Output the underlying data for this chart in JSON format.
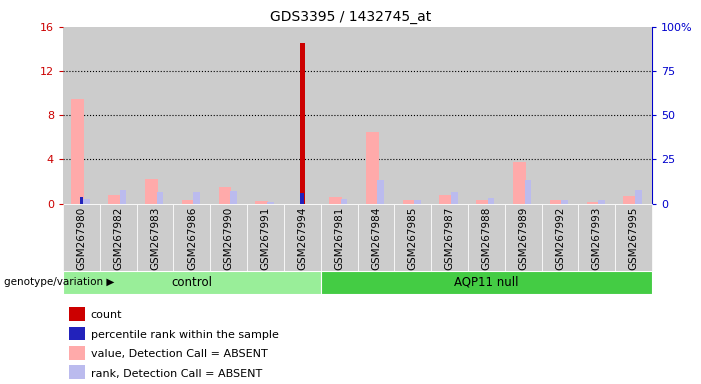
{
  "title": "GDS3395 / 1432745_at",
  "samples": [
    "GSM267980",
    "GSM267982",
    "GSM267983",
    "GSM267986",
    "GSM267990",
    "GSM267991",
    "GSM267994",
    "GSM267981",
    "GSM267984",
    "GSM267985",
    "GSM267987",
    "GSM267988",
    "GSM267989",
    "GSM267992",
    "GSM267993",
    "GSM267995"
  ],
  "count_values": [
    0,
    0,
    0,
    0,
    0,
    0,
    14.5,
    0,
    0,
    0,
    0,
    0,
    0,
    0,
    0,
    0
  ],
  "percentile_values": [
    3.8,
    0,
    0,
    0,
    0,
    0,
    5.8,
    0,
    0,
    0,
    0,
    0,
    0,
    0,
    0,
    0
  ],
  "value_absent": [
    9.5,
    0.8,
    2.2,
    0.3,
    1.5,
    0.25,
    0,
    0.6,
    6.5,
    0.3,
    0.8,
    0.35,
    3.8,
    0.3,
    0.15,
    0.7
  ],
  "rank_absent": [
    0.4,
    1.2,
    1.0,
    1.0,
    1.1,
    0.15,
    0,
    0.4,
    2.1,
    0.3,
    1.0,
    0.5,
    2.1,
    0.3,
    0.35,
    1.2
  ],
  "ylim_left": [
    0,
    16
  ],
  "ylim_right": [
    0,
    100
  ],
  "left_ticks": [
    0,
    4,
    8,
    12,
    16
  ],
  "right_ticks": [
    0,
    25,
    50,
    75,
    100
  ],
  "n_control": 7,
  "group_control_label": "control",
  "group_aqp_label": "AQP11 null",
  "legend_items": [
    {
      "label": "count",
      "color": "#cc0000"
    },
    {
      "label": "percentile rank within the sample",
      "color": "#2222bb"
    },
    {
      "label": "value, Detection Call = ABSENT",
      "color": "#ffaaaa"
    },
    {
      "label": "rank, Detection Call = ABSENT",
      "color": "#bbbbee"
    }
  ],
  "color_count": "#cc0000",
  "color_percentile": "#2222bb",
  "color_value_absent": "#ffaaaa",
  "color_rank_absent": "#bbbbee",
  "color_control_bg": "#99ee99",
  "color_aqp_bg": "#44cc44",
  "color_sample_bg": "#cccccc",
  "color_axis_left": "#cc0000",
  "color_axis_right": "#0000cc",
  "genotype_label": "genotype/variation"
}
